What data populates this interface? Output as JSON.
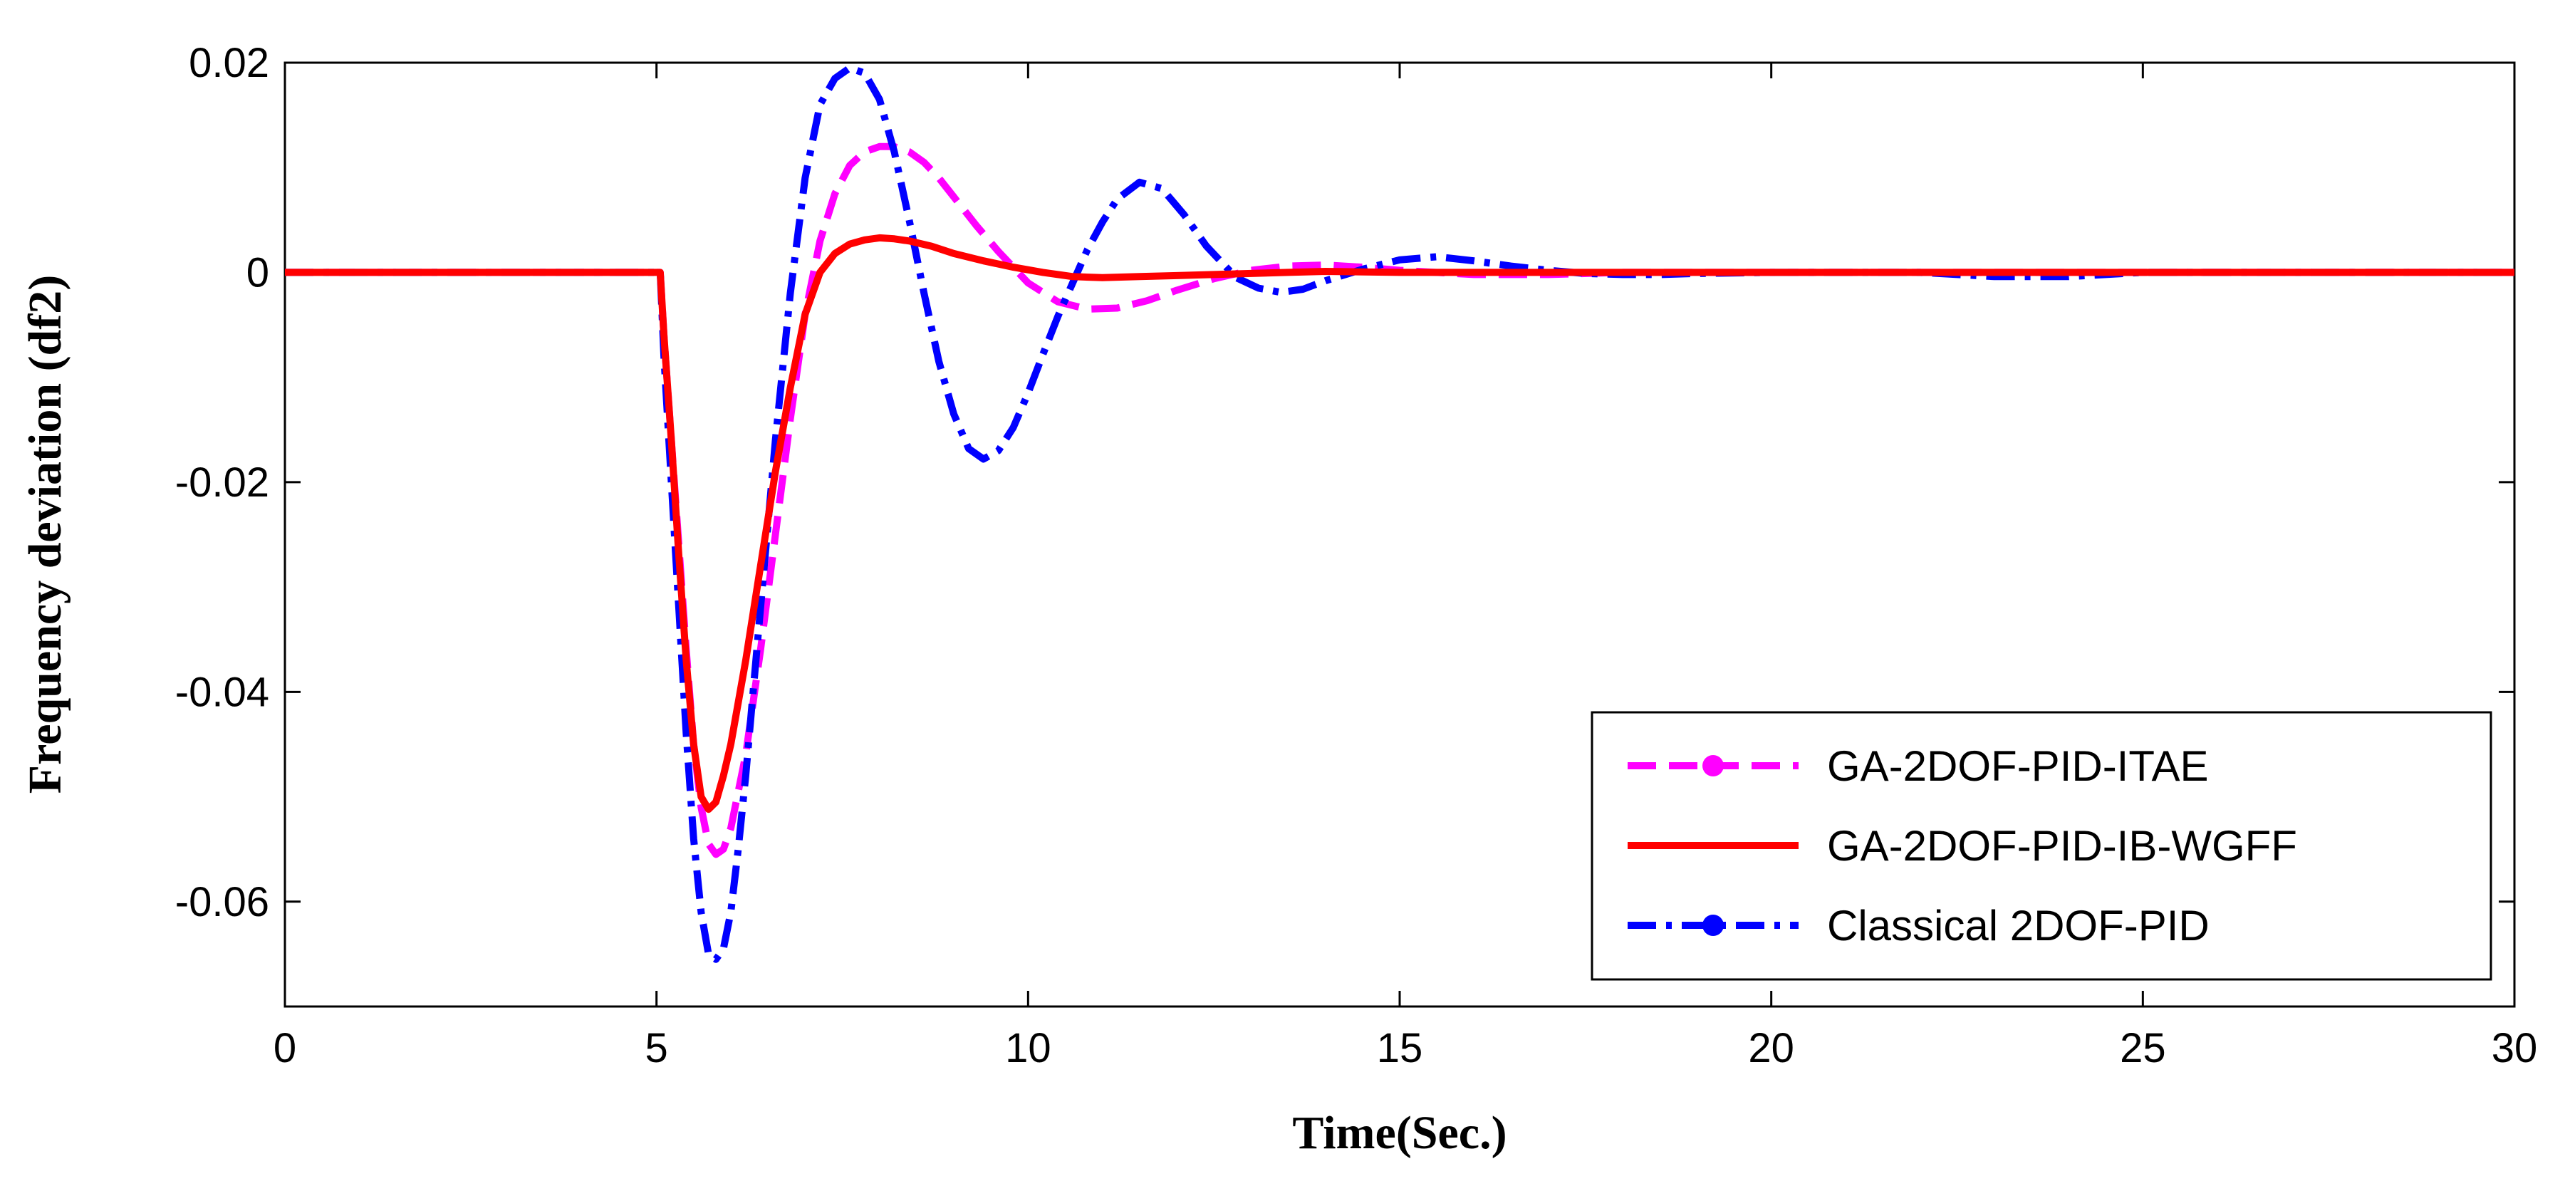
{
  "chart_data": {
    "type": "line",
    "title": "",
    "xlabel": "Time(Sec.)",
    "ylabel": "Frequency deviation (df2)",
    "xlim": [
      0,
      30
    ],
    "ylim": [
      -0.07,
      0.02
    ],
    "xticks": [
      0,
      5,
      10,
      15,
      20,
      25,
      30
    ],
    "xtick_labels": [
      "0",
      "5",
      "10",
      "15",
      "20",
      "25",
      "30"
    ],
    "yticks": [
      0.02,
      0,
      -0.02,
      -0.04,
      -0.06
    ],
    "ytick_labels": [
      "0.02",
      "0",
      "-0.02",
      "-0.04",
      "-0.06"
    ],
    "grid": false,
    "legend_position": "bottom-right",
    "series": [
      {
        "name": "GA-2DOF-PID-ITAE",
        "color": "#ff00ff",
        "style": "dashed",
        "x": [
          0,
          5.05,
          5.1,
          5.2,
          5.3,
          5.4,
          5.5,
          5.6,
          5.7,
          5.8,
          5.9,
          6.0,
          6.2,
          6.4,
          6.6,
          6.8,
          7.0,
          7.2,
          7.4,
          7.6,
          7.8,
          8.0,
          8.2,
          8.4,
          8.6,
          8.8,
          9.0,
          9.3,
          9.6,
          10.0,
          10.4,
          10.8,
          11.2,
          11.6,
          12.0,
          12.5,
          13.0,
          13.5,
          14.0,
          14.5,
          15.0,
          16.0,
          17.0,
          18.0,
          30
        ],
        "y": [
          0,
          0,
          -0.006,
          -0.016,
          -0.026,
          -0.036,
          -0.045,
          -0.051,
          -0.0545,
          -0.0555,
          -0.055,
          -0.053,
          -0.046,
          -0.036,
          -0.025,
          -0.014,
          -0.004,
          0.003,
          0.0075,
          0.0102,
          0.0115,
          0.012,
          0.012,
          0.0115,
          0.0105,
          0.009,
          0.0072,
          0.0045,
          0.002,
          -0.001,
          -0.0028,
          -0.0035,
          -0.0034,
          -0.0027,
          -0.0017,
          -0.0006,
          0.0002,
          0.0006,
          0.0007,
          0.0005,
          0.0002,
          -0.0002,
          -0.0002,
          0,
          0
        ]
      },
      {
        "name": "GA-2DOF-PID-IB-WGFF",
        "color": "#ff0000",
        "style": "solid",
        "x": [
          0,
          5.05,
          5.1,
          5.2,
          5.3,
          5.4,
          5.5,
          5.6,
          5.7,
          5.8,
          5.9,
          6.0,
          6.2,
          6.4,
          6.6,
          6.8,
          7.0,
          7.2,
          7.4,
          7.6,
          7.8,
          8.0,
          8.2,
          8.4,
          8.7,
          9.0,
          9.4,
          9.8,
          10.2,
          10.6,
          11.0,
          11.5,
          12.0,
          12.5,
          13.0,
          13.5,
          14.0,
          15.0,
          16.0,
          24.0,
          30
        ],
        "y": [
          0,
          0,
          -0.006,
          -0.016,
          -0.027,
          -0.037,
          -0.045,
          -0.05,
          -0.0512,
          -0.0505,
          -0.048,
          -0.045,
          -0.037,
          -0.028,
          -0.019,
          -0.011,
          -0.004,
          0.0,
          0.0018,
          0.0027,
          0.0031,
          0.0033,
          0.0032,
          0.003,
          0.0025,
          0.0018,
          0.0011,
          0.0005,
          0.0,
          -0.0004,
          -0.0005,
          -0.0004,
          -0.0003,
          -0.0002,
          -0.0001,
          0.0,
          0.0001,
          0.0,
          0.0,
          0.0,
          0
        ]
      },
      {
        "name": "Classical 2DOF-PID",
        "color": "#0000ff",
        "style": "dashdot",
        "x": [
          0,
          5.05,
          5.1,
          5.2,
          5.3,
          5.4,
          5.5,
          5.6,
          5.7,
          5.8,
          5.9,
          6.0,
          6.1,
          6.2,
          6.4,
          6.6,
          6.8,
          7.0,
          7.2,
          7.4,
          7.6,
          7.8,
          8.0,
          8.2,
          8.4,
          8.6,
          8.8,
          9.0,
          9.2,
          9.4,
          9.6,
          9.8,
          10.0,
          10.2,
          10.4,
          10.6,
          10.8,
          11.0,
          11.2,
          11.5,
          11.8,
          12.1,
          12.4,
          12.8,
          13.1,
          13.4,
          13.7,
          14.0,
          14.5,
          15.0,
          15.5,
          16.0,
          16.5,
          17.0,
          17.5,
          18.0,
          18.5,
          19.0,
          20.0,
          22.0,
          23.0,
          24.0,
          25.0,
          30
        ],
        "y": [
          0,
          0,
          -0.008,
          -0.02,
          -0.032,
          -0.044,
          -0.054,
          -0.061,
          -0.065,
          -0.0655,
          -0.0645,
          -0.061,
          -0.055,
          -0.048,
          -0.032,
          -0.016,
          -0.002,
          0.009,
          0.016,
          0.0185,
          0.0195,
          0.019,
          0.0165,
          0.0115,
          0.005,
          -0.002,
          -0.0085,
          -0.0135,
          -0.0168,
          -0.0178,
          -0.017,
          -0.0148,
          -0.0115,
          -0.0078,
          -0.0042,
          -0.001,
          0.0022,
          0.0048,
          0.007,
          0.0086,
          0.008,
          0.0055,
          0.0025,
          -0.0005,
          -0.0015,
          -0.0019,
          -0.0016,
          -0.0008,
          0.0003,
          0.0012,
          0.0015,
          0.0011,
          0.0006,
          0.0002,
          -0.0001,
          -0.0002,
          -0.0002,
          -0.0001,
          0.0,
          0.0,
          -0.0004,
          -0.0004,
          0.0,
          0
        ]
      }
    ]
  }
}
